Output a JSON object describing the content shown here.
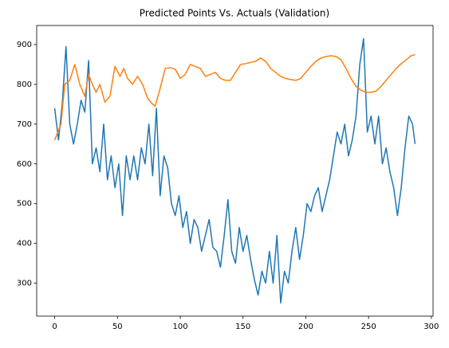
{
  "chart_data": {
    "type": "line",
    "title": "Predicted Points Vs. Actuals (Validation)",
    "xlim": [
      -14.35,
      301.35
    ],
    "xticks": [
      0,
      50,
      100,
      150,
      200,
      250,
      300
    ],
    "ylim": [
      217,
      948
    ],
    "yticks": [
      300,
      400,
      500,
      600,
      700,
      800,
      900
    ],
    "grid": false,
    "series": [
      {
        "color": "#1f77b4",
        "x": [
          0,
          3,
          6,
          9,
          12,
          15,
          18,
          21,
          24,
          27,
          30,
          33,
          36,
          39,
          42,
          45,
          48,
          51,
          54,
          57,
          60,
          63,
          66,
          69,
          72,
          75,
          78,
          81,
          84,
          87,
          90,
          93,
          96,
          99,
          102,
          105,
          108,
          111,
          114,
          117,
          120,
          123,
          126,
          129,
          132,
          135,
          138,
          141,
          144,
          147,
          150,
          153,
          156,
          159,
          162,
          165,
          168,
          171,
          174,
          177,
          180,
          183,
          186,
          189,
          192,
          195,
          198,
          201,
          204,
          207,
          210,
          213,
          216,
          219,
          222,
          225,
          228,
          231,
          234,
          237,
          240,
          243,
          246,
          249,
          252,
          255,
          258,
          261,
          264,
          267,
          270,
          273,
          276,
          279,
          282,
          285,
          287
        ],
        "values": [
          740,
          660,
          750,
          895,
          700,
          650,
          700,
          760,
          730,
          860,
          600,
          640,
          580,
          700,
          560,
          620,
          540,
          600,
          470,
          620,
          560,
          620,
          560,
          640,
          600,
          700,
          570,
          740,
          520,
          620,
          590,
          500,
          470,
          520,
          440,
          480,
          400,
          460,
          440,
          380,
          420,
          460,
          390,
          380,
          340,
          420,
          510,
          380,
          350,
          440,
          380,
          420,
          360,
          310,
          270,
          330,
          300,
          380,
          300,
          420,
          250,
          330,
          300,
          380,
          440,
          360,
          420,
          500,
          480,
          520,
          540,
          480,
          520,
          560,
          620,
          680,
          650,
          700,
          620,
          660,
          720,
          850,
          915,
          680,
          720,
          650,
          720,
          600,
          640,
          580,
          540,
          470,
          540,
          640,
          720,
          700,
          650
        ]
      },
      {
        "color": "#ff7f0e",
        "x": [
          0,
          5,
          8,
          12,
          16,
          20,
          24,
          27,
          30,
          33,
          36,
          40,
          44,
          48,
          52,
          55,
          58,
          62,
          66,
          70,
          74,
          78,
          80,
          84,
          88,
          92,
          96,
          100,
          104,
          108,
          112,
          116,
          120,
          124,
          128,
          132,
          136,
          140,
          144,
          148,
          152,
          156,
          160,
          164,
          168,
          172,
          176,
          180,
          184,
          188,
          192,
          196,
          200,
          204,
          208,
          212,
          216,
          220,
          224,
          228,
          232,
          236,
          240,
          244,
          248,
          252,
          256,
          260,
          264,
          268,
          272,
          276,
          280,
          284,
          287
        ],
        "values": [
          660,
          700,
          800,
          810,
          850,
          800,
          770,
          825,
          800,
          780,
          800,
          755,
          770,
          845,
          820,
          840,
          815,
          800,
          820,
          800,
          765,
          750,
          745,
          790,
          840,
          842,
          838,
          815,
          825,
          850,
          845,
          840,
          820,
          825,
          830,
          815,
          810,
          810,
          830,
          850,
          852,
          855,
          858,
          866,
          858,
          840,
          830,
          820,
          815,
          812,
          810,
          815,
          830,
          845,
          858,
          866,
          870,
          872,
          870,
          862,
          840,
          815,
          795,
          785,
          780,
          780,
          783,
          795,
          810,
          825,
          840,
          852,
          862,
          872,
          875
        ]
      }
    ]
  }
}
